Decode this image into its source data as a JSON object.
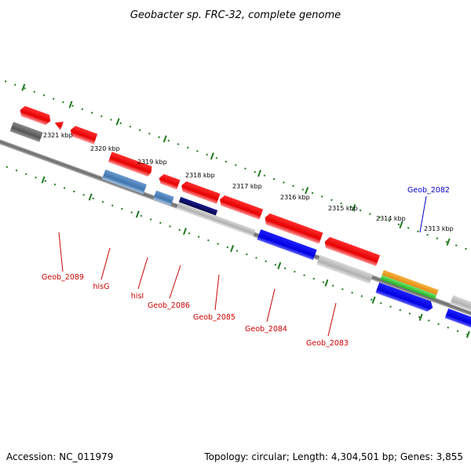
{
  "title": "Geobacter sp. FRC-32, complete genome",
  "accession": "Accession: NC_011979",
  "topology": "Topology: circular; Length: 4,304,501 bp; Genes: 3,855",
  "ruler": {
    "ticks": [
      {
        "label": "2321 kbp"
      },
      {
        "label": "2320 kbp"
      },
      {
        "label": "2319 kbp"
      },
      {
        "label": "2318 kbp"
      },
      {
        "label": "2317 kbp"
      },
      {
        "label": "2316 kbp"
      },
      {
        "label": "2315 kbp"
      },
      {
        "label": "2314 kbp"
      },
      {
        "label": "2313 kbp"
      }
    ]
  },
  "genes": [
    {
      "label": "Geob_2089",
      "color": "#cc0000"
    },
    {
      "label": "hisG",
      "color": "#cc0000"
    },
    {
      "label": "hisI",
      "color": "#cc0000"
    },
    {
      "label": "Geob_2086",
      "color": "#cc0000"
    },
    {
      "label": "Geob_2085",
      "color": "#cc0000"
    },
    {
      "label": "Geob_2084",
      "color": "#cc0000"
    },
    {
      "label": "Geob_2083",
      "color": "#cc0000"
    },
    {
      "label": "Geob_2082",
      "color": "#0000cc"
    }
  ],
  "colors": {
    "cds": "#ff0000",
    "cog_blue": "#0000ff",
    "cog_steel": "#4a7fb8",
    "cog_navy": "#0a0a6e",
    "cog_gray": "#b8b8b8",
    "cog_dark": "#5a5a5a",
    "rrna_orange": "#f39a1c",
    "rrna_green": "#3ccf3c",
    "ruler_green": "#1e7a1e",
    "backbone": "#7a7a7a"
  }
}
